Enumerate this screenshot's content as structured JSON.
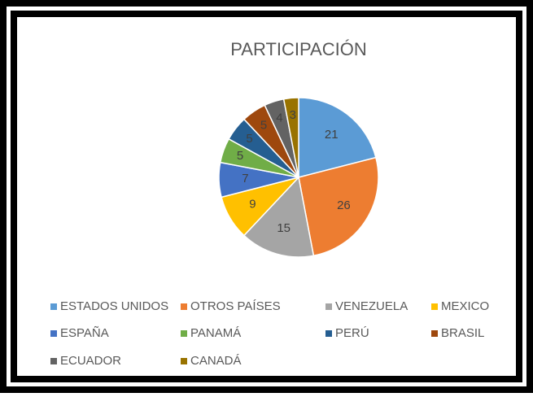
{
  "chart_data": {
    "type": "pie",
    "title": "PARTICIPACIÓN",
    "categories": [
      "ESTADOS UNIDOS",
      "OTROS PAÍSES",
      "VENEZUELA",
      "MEXICO",
      "ESPAÑA",
      "PANAMÁ",
      "PERÚ",
      "BRASIL",
      "ECUADOR",
      "CANADÁ"
    ],
    "values": [
      21,
      26,
      15,
      9,
      7,
      5,
      5,
      5,
      4,
      3
    ],
    "colors": [
      "#5b9bd5",
      "#ed7d31",
      "#a5a5a5",
      "#ffc000",
      "#4472c4",
      "#70ad47",
      "#255e91",
      "#9e480e",
      "#636363",
      "#997300"
    ],
    "legend": "bottom"
  }
}
